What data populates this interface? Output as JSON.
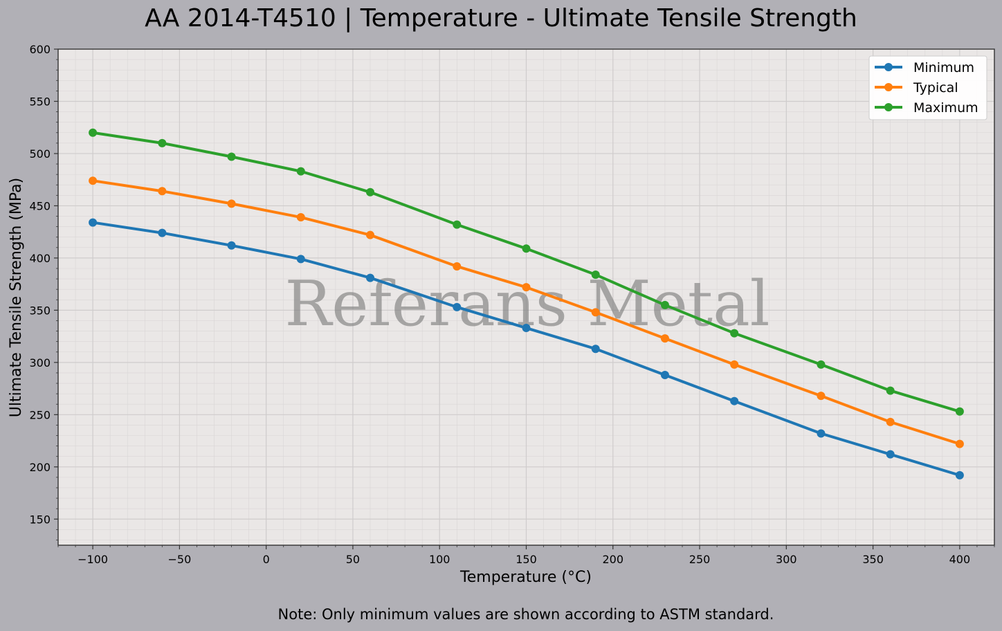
{
  "chart_data": {
    "type": "line",
    "title": "AA 2014-T4510 | Temperature - Ultimate Tensile Strength",
    "xlabel": "Temperature (°C)",
    "ylabel": "Ultimate Tensile Strength (MPa)",
    "xlim": [
      -120,
      420
    ],
    "ylim": [
      125,
      600
    ],
    "xticks": [
      -100,
      -50,
      0,
      50,
      100,
      150,
      200,
      250,
      300,
      350,
      400
    ],
    "xtick_labels": [
      "−100",
      "−50",
      "0",
      "50",
      "100",
      "150",
      "200",
      "250",
      "300",
      "350",
      "400"
    ],
    "yticks": [
      150,
      200,
      250,
      300,
      350,
      400,
      450,
      500,
      550,
      600
    ],
    "ytick_labels": [
      "150",
      "200",
      "250",
      "300",
      "350",
      "400",
      "450",
      "500",
      "550",
      "600"
    ],
    "grid": true,
    "legend_position": "top-right",
    "x": [
      -100,
      -60,
      -20,
      20,
      60,
      110,
      150,
      190,
      230,
      270,
      320,
      360,
      400
    ],
    "series": [
      {
        "name": "Minimum",
        "color": "#1f77b4",
        "values": [
          434,
          424,
          412,
          399,
          381,
          353,
          333,
          313,
          288,
          263,
          232,
          212,
          192
        ]
      },
      {
        "name": "Typical",
        "color": "#ff7f0e",
        "values": [
          474,
          464,
          452,
          439,
          422,
          392,
          372,
          348,
          323,
          298,
          268,
          243,
          222
        ]
      },
      {
        "name": "Maximum",
        "color": "#2ca02c",
        "values": [
          520,
          510,
          497,
          483,
          463,
          432,
          409,
          384,
          355,
          328,
          298,
          273,
          253
        ]
      }
    ],
    "watermark": "Referans Metal",
    "note": "Note: Only minimum values are shown according to ASTM standard."
  }
}
